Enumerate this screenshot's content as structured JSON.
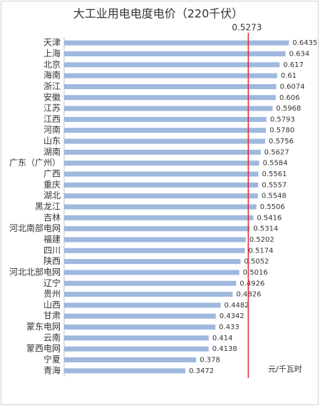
{
  "chart_data": {
    "type": "hbar",
    "title": "大工业用电电度电价（220千伏）",
    "categories": [
      "天津",
      "上海",
      "北京",
      "海南",
      "浙江",
      "安徽",
      "江苏",
      "江西",
      "河南",
      "山东",
      "湖南",
      "广东（广州）",
      "广西",
      "重庆",
      "湖北",
      "黑龙江",
      "吉林",
      "河北南部电网",
      "福建",
      "四川",
      "陕西",
      "河北北部电网",
      "辽宁",
      "贵州",
      "山西",
      "甘肃",
      "蒙东电网",
      "云南",
      "蒙西电网",
      "宁夏",
      "青海"
    ],
    "values": [
      0.6435,
      0.634,
      0.617,
      0.61,
      0.6074,
      0.606,
      0.5968,
      0.5793,
      0.578,
      0.5756,
      0.5627,
      0.5584,
      0.5561,
      0.5557,
      0.5548,
      0.5506,
      0.5416,
      0.5314,
      0.5202,
      0.5174,
      0.5052,
      0.5016,
      0.4926,
      0.4826,
      0.4482,
      0.4342,
      0.433,
      0.414,
      0.4138,
      0.378,
      0.3472
    ],
    "value_labels": [
      "0.6435",
      "0.634",
      "0.617",
      "0.61",
      "0.6074",
      "0.606",
      "0.5968",
      "0.5793",
      "0.5780",
      "0.5756",
      "0.5627",
      "0.5584",
      "0.5561",
      "0.5557",
      "0.5548",
      "0.5506",
      "0.5416",
      "0.5314",
      "0.5202",
      "0.5174",
      "0.5052",
      "0.5016",
      "0.4926",
      "0.4826",
      "0.4482",
      "0.4342",
      "0.433",
      "0.414",
      "0.4138",
      "0.378",
      "0.3472"
    ],
    "color": "#9fb8de",
    "xlim": [
      0,
      0.7
    ],
    "reference_line": {
      "value": 0.5273,
      "color": "#e0262b"
    },
    "unit": "元/千瓦时"
  }
}
